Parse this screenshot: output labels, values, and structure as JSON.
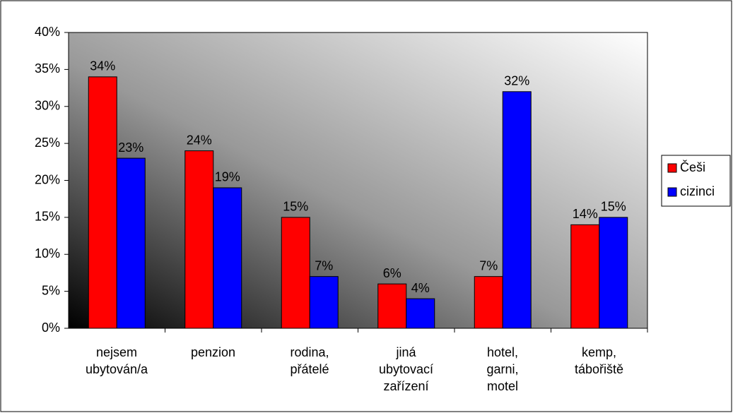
{
  "chart_data": {
    "type": "bar",
    "categories": [
      "nejsem\nubytován/a",
      "penzion",
      "rodina,\npřátelé",
      "jiná\nubytovací\nzařízení",
      "hotel,\ngarni,\nmotel",
      "kemp,\ntábořiště"
    ],
    "series": [
      {
        "name": "Češi",
        "color": "#ff0000",
        "values": [
          34,
          24,
          15,
          6,
          7,
          14
        ],
        "value_labels": [
          "34%",
          "24%",
          "15%",
          "6%",
          "7%",
          "14%"
        ]
      },
      {
        "name": "cizinci",
        "color": "#0000ff",
        "values": [
          23,
          19,
          7,
          4,
          32,
          15
        ],
        "value_labels": [
          "23%",
          "19%",
          "7%",
          "4%",
          "32%",
          "15%"
        ]
      }
    ],
    "ylim": [
      0,
      40
    ],
    "yticks": [
      {
        "value": 0,
        "label": "0%"
      },
      {
        "value": 5,
        "label": "5%"
      },
      {
        "value": 10,
        "label": "10%"
      },
      {
        "value": 15,
        "label": "15%"
      },
      {
        "value": 20,
        "label": "20%"
      },
      {
        "value": 25,
        "label": "25%"
      },
      {
        "value": 30,
        "label": "30%"
      },
      {
        "value": 35,
        "label": "35%"
      },
      {
        "value": 40,
        "label": "40%"
      }
    ],
    "legend": "right"
  }
}
